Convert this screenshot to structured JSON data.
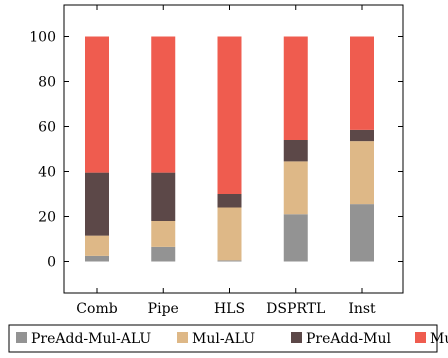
{
  "chart_data": {
    "type": "bar",
    "stacked": true,
    "title": "",
    "xlabel": "",
    "ylabel": "",
    "categories": [
      "Comb",
      "Pipe",
      "HLS",
      "DSPRTL",
      "Inst"
    ],
    "ylim": [
      -14,
      114
    ],
    "yticks": [
      0,
      20,
      40,
      60,
      80,
      100
    ],
    "grid": false,
    "legend_position": "bottom",
    "series": [
      {
        "name": "PreAdd-Mul-ALU",
        "color": "#939393",
        "values": [
          2.5,
          6.5,
          0.5,
          21,
          25.5
        ]
      },
      {
        "name": "Mul-ALU",
        "color": "#deb887",
        "values": [
          9,
          11.5,
          23.5,
          23.5,
          28
        ]
      },
      {
        "name": "PreAdd-Mul",
        "color": "#5c4848",
        "values": [
          28,
          21.5,
          6,
          9.5,
          5
        ]
      },
      {
        "name": "Mul",
        "color": "#ef5c4f",
        "values": [
          60.5,
          60.5,
          70,
          46,
          41.5
        ]
      }
    ]
  }
}
